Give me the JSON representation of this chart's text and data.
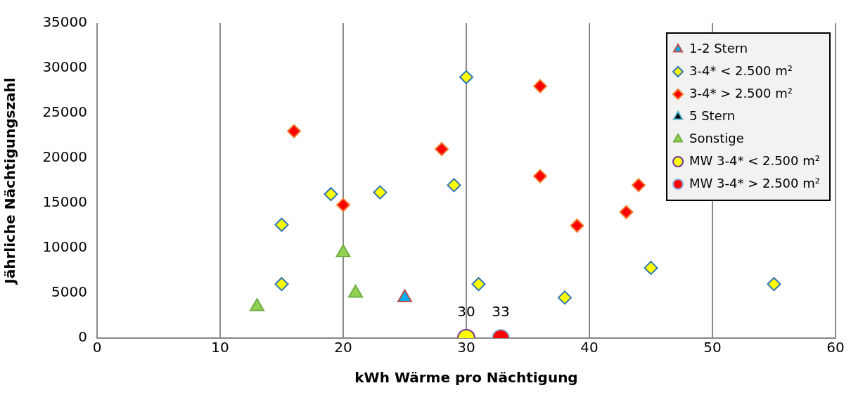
{
  "chart_data": {
    "type": "scatter",
    "xlabel": "kWh Wärme pro Nächtigung",
    "ylabel": "Jährliche Nächtigungszahl",
    "xlim": [
      0,
      60
    ],
    "xticks": [
      0,
      10,
      20,
      30,
      40,
      50,
      60
    ],
    "ylim": [
      0,
      35000
    ],
    "yticks": [
      0,
      5000,
      10000,
      15000,
      20000,
      25000,
      30000,
      35000
    ],
    "grid": "x",
    "legend": "top right",
    "series": [
      {
        "name": "1-2 Stern",
        "color": "#00b0f0",
        "marker": "triangle",
        "x": [
          25
        ],
        "values": [
          4500
        ]
      },
      {
        "name": "3-4* < 2.500 m²",
        "color": "#ffff00",
        "marker": "diamond",
        "x": [
          30,
          29,
          19,
          23,
          15,
          15,
          31,
          38,
          45,
          55
        ],
        "values": [
          29000,
          17000,
          16000,
          16200,
          12600,
          6000,
          6000,
          4500,
          7800,
          6000
        ]
      },
      {
        "name": "3-4* > 2.500 m²",
        "color": "#ff0000",
        "marker": "diamond",
        "x": [
          16,
          28,
          20,
          36,
          36,
          44,
          43,
          39
        ],
        "values": [
          23000,
          21000,
          14800,
          28000,
          18000,
          17000,
          14000,
          12500
        ]
      },
      {
        "name": "5 Stern",
        "color": "#000000",
        "marker": "triangle"
      },
      {
        "name": "Sonstige",
        "color": "#92d050",
        "marker": "triangle",
        "x": [
          20,
          21,
          13
        ],
        "values": [
          9500,
          5000,
          3500
        ]
      },
      {
        "name": "MW 3-4* < 2.500 m²",
        "color": "#ffff00",
        "marker": "circle",
        "x": [
          30
        ],
        "values": [
          0
        ]
      },
      {
        "name": "MW 3-4* > 2.500 m²",
        "color": "#ff0000",
        "marker": "circle",
        "x": [
          32.8
        ],
        "values": [
          0
        ]
      }
    ],
    "annotations": [
      {
        "text": "30",
        "x": 30,
        "y": 0
      },
      {
        "text": "33",
        "x": 32.8,
        "y": 0
      }
    ]
  }
}
